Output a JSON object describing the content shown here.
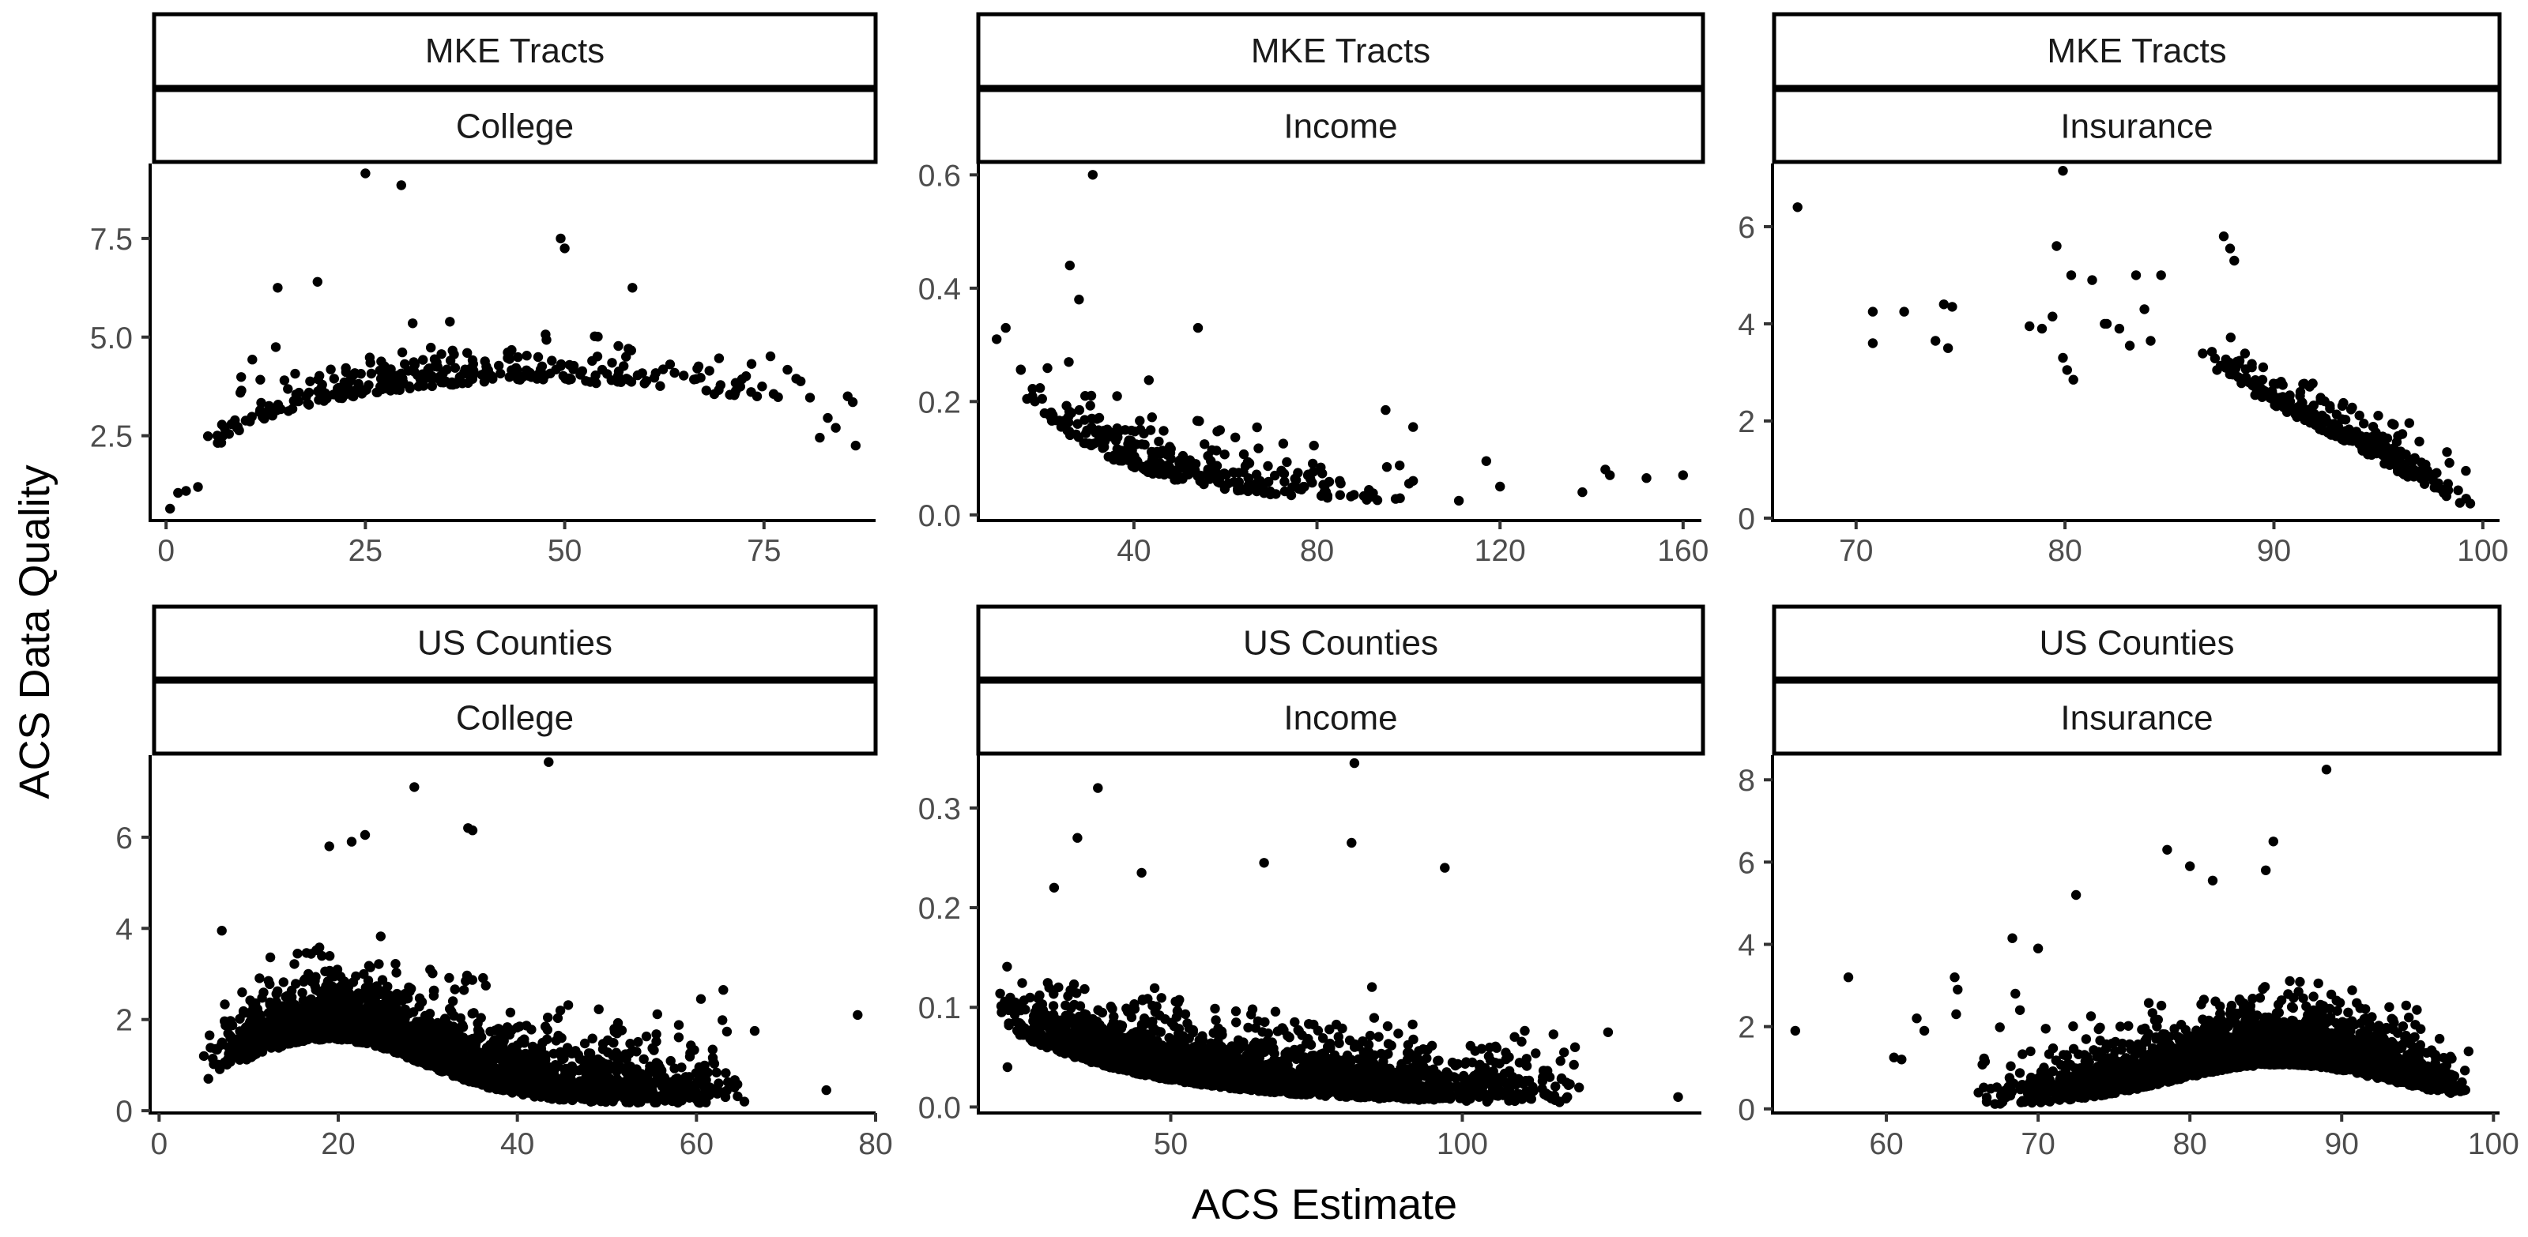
{
  "chart_data": {
    "type": "scatter",
    "xlabel": "ACS Estimate",
    "ylabel": "ACS Data Quality",
    "grid": false,
    "point_color": "#000000",
    "facets": [
      {
        "geography": "MKE Tracts",
        "variable": "College",
        "xlim": [
          -2,
          89
        ],
        "ylim": [
          0.35,
          9.4
        ],
        "xticks": [
          0,
          25,
          50,
          75
        ],
        "xtick_labels": [
          "0",
          "25",
          "50",
          "75"
        ],
        "yticks": [
          2.5,
          5.0,
          7.5
        ],
        "ytick_labels": [
          "2.5",
          "5.0",
          "7.5"
        ],
        "cluster": {
          "n": 330,
          "seed": 11,
          "x_min": 0.5,
          "x_max": 87,
          "x_mode": 22,
          "y_shape": "college_tract",
          "y_noise": 0.55
        },
        "points": [
          [
            25,
            9.15
          ],
          [
            29.5,
            8.85
          ],
          [
            49.5,
            7.5
          ],
          [
            50,
            7.25
          ],
          [
            19,
            6.4
          ],
          [
            14,
            6.25
          ],
          [
            58.5,
            6.25
          ],
          [
            0.5,
            0.65
          ],
          [
            1.5,
            1.05
          ],
          [
            2.5,
            1.1
          ],
          [
            4,
            1.2
          ],
          [
            83,
            2.95
          ],
          [
            84,
            2.7
          ],
          [
            86.5,
            2.25
          ],
          [
            82,
            2.45
          ],
          [
            85.5,
            3.5
          ]
        ]
      },
      {
        "geography": "MKE Tracts",
        "variable": "Income",
        "xlim": [
          6,
          164
        ],
        "ylim": [
          -0.01,
          0.62
        ],
        "xticks": [
          40,
          80,
          120,
          160
        ],
        "xtick_labels": [
          "40",
          "80",
          "120",
          "160"
        ],
        "yticks": [
          0.0,
          0.2,
          0.4,
          0.6
        ],
        "ytick_labels": [
          "0.0",
          "0.2",
          "0.4",
          "0.6"
        ],
        "cluster": {
          "n": 300,
          "seed": 23,
          "x_min": 12,
          "x_max": 105,
          "x_mode": 38,
          "y_shape": "income_tract",
          "y_noise": 0.045
        },
        "points": [
          [
            31,
            0.6
          ],
          [
            26,
            0.44
          ],
          [
            28,
            0.38
          ],
          [
            10,
            0.31
          ],
          [
            12,
            0.33
          ],
          [
            54,
            0.33
          ],
          [
            138,
            0.04
          ],
          [
            143,
            0.08
          ],
          [
            144,
            0.07
          ],
          [
            152,
            0.065
          ],
          [
            160,
            0.07
          ],
          [
            111,
            0.025
          ],
          [
            117,
            0.095
          ],
          [
            101,
            0.155
          ],
          [
            95,
            0.185
          ],
          [
            101,
            0.06
          ],
          [
            120,
            0.05
          ]
        ]
      },
      {
        "geography": "MKE Tracts",
        "variable": "Insurance",
        "xlim": [
          66,
          100.8
        ],
        "ylim": [
          -0.05,
          7.3
        ],
        "xticks": [
          70,
          80,
          90,
          100
        ],
        "xtick_labels": [
          "70",
          "80",
          "90",
          "100"
        ],
        "yticks": [
          0,
          2,
          4,
          6
        ],
        "ytick_labels": [
          "0",
          "2",
          "4",
          "6"
        ],
        "cluster": {
          "n": 300,
          "seed": 37,
          "x_min": 86,
          "x_max": 99.5,
          "x_mode": 95,
          "y_shape": "insurance_tract",
          "y_noise": 0.45
        },
        "points": [
          [
            67.2,
            6.4
          ],
          [
            70.8,
            4.25
          ],
          [
            70.8,
            3.6
          ],
          [
            72.3,
            4.25
          ],
          [
            73.8,
            3.65
          ],
          [
            74.4,
            3.5
          ],
          [
            74.2,
            4.4
          ],
          [
            74.6,
            4.35
          ],
          [
            78.3,
            3.95
          ],
          [
            78.9,
            3.9
          ],
          [
            79.9,
            7.15
          ],
          [
            79.6,
            5.6
          ],
          [
            80.3,
            5.0
          ],
          [
            81.3,
            4.9
          ],
          [
            79.4,
            4.15
          ],
          [
            80.1,
            3.05
          ],
          [
            80.4,
            2.85
          ],
          [
            79.9,
            3.3
          ],
          [
            81.9,
            4.0
          ],
          [
            83.4,
            5.0
          ],
          [
            84.6,
            5.0
          ],
          [
            83.1,
            3.55
          ],
          [
            82.6,
            3.9
          ],
          [
            84.1,
            3.65
          ],
          [
            87.6,
            5.8
          ],
          [
            87.9,
            5.55
          ],
          [
            88.1,
            5.3
          ],
          [
            82.0,
            4.0
          ],
          [
            83.8,
            4.3
          ],
          [
            99.4,
            0.3
          ],
          [
            99.2,
            0.4
          ]
        ]
      },
      {
        "geography": "US Counties",
        "variable": "College",
        "xlim": [
          -1,
          80
        ],
        "ylim": [
          -0.05,
          7.8
        ],
        "xticks": [
          0,
          20,
          40,
          60,
          80
        ],
        "xtick_labels": [
          "0",
          "20",
          "40",
          "60",
          "80"
        ],
        "yticks": [
          0,
          2,
          4,
          6
        ],
        "ytick_labels": [
          "0",
          "2",
          "4",
          "6"
        ],
        "cluster": {
          "n": 2600,
          "seed": 41,
          "x_min": 5,
          "x_max": 66,
          "x_mode": 19,
          "y_shape": "college_county",
          "y_noise": 0.75
        },
        "points": [
          [
            43.5,
            7.65
          ],
          [
            28.5,
            7.1
          ],
          [
            34.5,
            6.2
          ],
          [
            35,
            6.15
          ],
          [
            23,
            6.05
          ],
          [
            19,
            5.8
          ],
          [
            21.5,
            5.9
          ],
          [
            78,
            2.1
          ],
          [
            74.5,
            0.45
          ],
          [
            66.5,
            1.75
          ],
          [
            63,
            2.65
          ],
          [
            60.5,
            2.45
          ],
          [
            7,
            3.95
          ],
          [
            5,
            1.2
          ],
          [
            5.5,
            0.7
          ]
        ]
      },
      {
        "geography": "US Counties",
        "variable": "Income",
        "xlim": [
          17,
          141
        ],
        "ylim": [
          -0.006,
          0.353
        ],
        "xticks": [
          50,
          100
        ],
        "xtick_labels": [
          "50",
          "100"
        ],
        "yticks": [
          0.0,
          0.1,
          0.2,
          0.3
        ],
        "ytick_labels": [
          "0.0",
          "0.1",
          "0.2",
          "0.3"
        ],
        "cluster": {
          "n": 2600,
          "seed": 53,
          "x_min": 20,
          "x_max": 122,
          "x_mode": 45,
          "y_shape": "income_county",
          "y_noise": 0.03
        },
        "points": [
          [
            81.5,
            0.345
          ],
          [
            37.5,
            0.32
          ],
          [
            81,
            0.265
          ],
          [
            34,
            0.27
          ],
          [
            66,
            0.245
          ],
          [
            97,
            0.24
          ],
          [
            45,
            0.235
          ],
          [
            30,
            0.22
          ],
          [
            125,
            0.075
          ],
          [
            137,
            0.01
          ],
          [
            118,
            0.01
          ],
          [
            115,
            0.03
          ],
          [
            108,
            0.05
          ],
          [
            21,
            0.095
          ],
          [
            22,
            0.04
          ]
        ]
      },
      {
        "geography": "US Counties",
        "variable": "Insurance",
        "xlim": [
          52.5,
          100.4
        ],
        "ylim": [
          -0.1,
          8.6
        ],
        "xticks": [
          60,
          70,
          80,
          90,
          100
        ],
        "xtick_labels": [
          "60",
          "70",
          "80",
          "90",
          "100"
        ],
        "yticks": [
          0,
          2,
          4,
          6,
          8
        ],
        "ytick_labels": [
          "0",
          "2",
          "4",
          "6",
          "8"
        ],
        "cluster": {
          "n": 2600,
          "seed": 67,
          "x_min": 66,
          "x_max": 98.6,
          "x_mode": 89,
          "y_shape": "insurance_county",
          "y_noise": 0.7
        },
        "points": [
          [
            89,
            8.25
          ],
          [
            78.5,
            6.3
          ],
          [
            85.5,
            6.5
          ],
          [
            85,
            5.8
          ],
          [
            80,
            5.9
          ],
          [
            81.5,
            5.55
          ],
          [
            54,
            1.9
          ],
          [
            57.5,
            3.2
          ],
          [
            60.5,
            1.25
          ],
          [
            61,
            1.2
          ],
          [
            62,
            2.2
          ],
          [
            62.5,
            1.9
          ],
          [
            64.5,
            3.2
          ],
          [
            64.7,
            2.9
          ],
          [
            64.6,
            2.3
          ],
          [
            66.5,
            1.15
          ],
          [
            68.5,
            2.8
          ],
          [
            68.8,
            2.4
          ],
          [
            68.3,
            4.15
          ],
          [
            72.5,
            5.2
          ],
          [
            70,
            3.9
          ],
          [
            69.5,
            1.4
          ],
          [
            70.5,
            1.95
          ],
          [
            70.2,
            0.9
          ]
        ]
      }
    ]
  }
}
